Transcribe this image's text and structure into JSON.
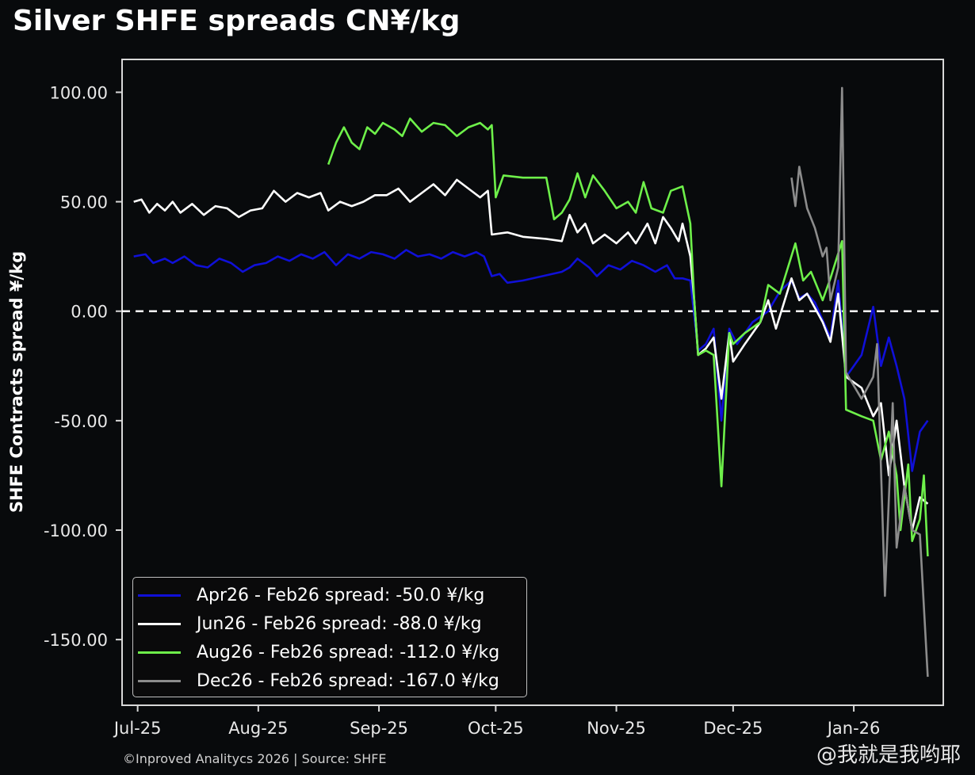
{
  "title": "Silver SHFE spreads CN¥/kg",
  "source": "©Inproved Analitycs 2026 | Source: SHFE",
  "watermark": "@我就是我哟耶",
  "chart_data": {
    "type": "line",
    "title": "Silver SHFE spreads CN¥/kg",
    "xlabel": "",
    "ylabel": "SHFE Contracts spread ¥/kg",
    "ylim": [
      -180,
      115
    ],
    "xlim": [
      "2025-06-27",
      "2026-01-24"
    ],
    "yticks": [
      100,
      50,
      0,
      -50,
      -100,
      -150
    ],
    "ytick_labels": [
      "100.00",
      "50.00",
      "0.00",
      "-50.00",
      "-100.00",
      "-150.00"
    ],
    "xticks": [
      "2025-07-01",
      "2025-08-01",
      "2025-09-01",
      "2025-10-01",
      "2025-11-01",
      "2025-12-01",
      "2026-01-01"
    ],
    "xtick_labels": [
      "Jul-25",
      "Aug-25",
      "Sep-25",
      "Oct-25",
      "Nov-25",
      "Dec-25",
      "Jan-26"
    ],
    "reference_line": {
      "y": 0,
      "style": "dashed",
      "color": "#ffffff"
    },
    "grid": false,
    "legend_position": "bottom-left",
    "series": [
      {
        "name": "Apr26 - Feb26 spread: -50.0 ¥/kg",
        "color": "#1010d8",
        "points": [
          [
            "2025-06-30",
            25
          ],
          [
            "2025-07-03",
            26
          ],
          [
            "2025-07-05",
            22
          ],
          [
            "2025-07-08",
            24
          ],
          [
            "2025-07-10",
            22
          ],
          [
            "2025-07-13",
            25
          ],
          [
            "2025-07-16",
            21
          ],
          [
            "2025-07-19",
            20
          ],
          [
            "2025-07-22",
            24
          ],
          [
            "2025-07-25",
            22
          ],
          [
            "2025-07-28",
            18
          ],
          [
            "2025-07-31",
            21
          ],
          [
            "2025-08-03",
            22
          ],
          [
            "2025-08-06",
            25
          ],
          [
            "2025-08-09",
            23
          ],
          [
            "2025-08-12",
            26
          ],
          [
            "2025-08-15",
            24
          ],
          [
            "2025-08-18",
            27
          ],
          [
            "2025-08-21",
            21
          ],
          [
            "2025-08-24",
            26
          ],
          [
            "2025-08-27",
            24
          ],
          [
            "2025-08-30",
            27
          ],
          [
            "2025-09-02",
            26
          ],
          [
            "2025-09-05",
            24
          ],
          [
            "2025-09-08",
            28
          ],
          [
            "2025-09-11",
            25
          ],
          [
            "2025-09-14",
            26
          ],
          [
            "2025-09-17",
            24
          ],
          [
            "2025-09-20",
            27
          ],
          [
            "2025-09-23",
            25
          ],
          [
            "2025-09-26",
            27
          ],
          [
            "2025-09-28",
            25
          ],
          [
            "2025-09-30",
            16
          ],
          [
            "2025-10-02",
            17
          ],
          [
            "2025-10-04",
            13
          ],
          [
            "2025-10-08",
            14
          ],
          [
            "2025-10-13",
            16
          ],
          [
            "2025-10-18",
            18
          ],
          [
            "2025-10-20",
            20
          ],
          [
            "2025-10-22",
            24
          ],
          [
            "2025-10-25",
            20
          ],
          [
            "2025-10-27",
            16
          ],
          [
            "2025-10-30",
            21
          ],
          [
            "2025-11-02",
            19
          ],
          [
            "2025-11-05",
            23
          ],
          [
            "2025-11-08",
            21
          ],
          [
            "2025-11-11",
            18
          ],
          [
            "2025-11-14",
            21
          ],
          [
            "2025-11-16",
            15
          ],
          [
            "2025-11-18",
            15
          ],
          [
            "2025-11-20",
            14
          ],
          [
            "2025-11-22",
            -18
          ],
          [
            "2025-11-24",
            -15
          ],
          [
            "2025-11-26",
            -8
          ],
          [
            "2025-11-28",
            -50
          ],
          [
            "2025-11-30",
            -8
          ],
          [
            "2025-12-02",
            -15
          ],
          [
            "2025-12-06",
            -5
          ],
          [
            "2025-12-10",
            0
          ],
          [
            "2025-12-13",
            9
          ],
          [
            "2025-12-16",
            14
          ],
          [
            "2025-12-18",
            6
          ],
          [
            "2025-12-20",
            8
          ],
          [
            "2025-12-22",
            4
          ],
          [
            "2025-12-24",
            -4
          ],
          [
            "2025-12-26",
            -12
          ],
          [
            "2025-12-28",
            14
          ],
          [
            "2025-12-30",
            -30
          ],
          [
            "2026-01-03",
            -20
          ],
          [
            "2026-01-06",
            2
          ],
          [
            "2026-01-08",
            -25
          ],
          [
            "2026-01-10",
            -12
          ],
          [
            "2026-01-12",
            -25
          ],
          [
            "2026-01-14",
            -40
          ],
          [
            "2026-01-16",
            -73
          ],
          [
            "2026-01-18",
            -55
          ],
          [
            "2026-01-20",
            -50
          ]
        ]
      },
      {
        "name": "Jun26 - Feb26 spread: -88.0 ¥/kg",
        "color": "#ffffff",
        "points": [
          [
            "2025-06-30",
            50
          ],
          [
            "2025-07-02",
            51
          ],
          [
            "2025-07-04",
            45
          ],
          [
            "2025-07-06",
            49
          ],
          [
            "2025-07-08",
            46
          ],
          [
            "2025-07-10",
            50
          ],
          [
            "2025-07-12",
            45
          ],
          [
            "2025-07-15",
            49
          ],
          [
            "2025-07-18",
            44
          ],
          [
            "2025-07-21",
            48
          ],
          [
            "2025-07-24",
            47
          ],
          [
            "2025-07-27",
            43
          ],
          [
            "2025-07-30",
            46
          ],
          [
            "2025-08-02",
            47
          ],
          [
            "2025-08-05",
            55
          ],
          [
            "2025-08-08",
            50
          ],
          [
            "2025-08-11",
            54
          ],
          [
            "2025-08-14",
            52
          ],
          [
            "2025-08-17",
            54
          ],
          [
            "2025-08-19",
            46
          ],
          [
            "2025-08-22",
            50
          ],
          [
            "2025-08-25",
            48
          ],
          [
            "2025-08-28",
            50
          ],
          [
            "2025-08-31",
            53
          ],
          [
            "2025-09-03",
            53
          ],
          [
            "2025-09-06",
            56
          ],
          [
            "2025-09-09",
            50
          ],
          [
            "2025-09-12",
            54
          ],
          [
            "2025-09-15",
            58
          ],
          [
            "2025-09-18",
            53
          ],
          [
            "2025-09-21",
            60
          ],
          [
            "2025-09-24",
            56
          ],
          [
            "2025-09-27",
            52
          ],
          [
            "2025-09-29",
            55
          ],
          [
            "2025-09-30",
            35
          ],
          [
            "2025-10-04",
            36
          ],
          [
            "2025-10-08",
            34
          ],
          [
            "2025-10-14",
            33
          ],
          [
            "2025-10-18",
            32
          ],
          [
            "2025-10-20",
            44
          ],
          [
            "2025-10-22",
            36
          ],
          [
            "2025-10-24",
            40
          ],
          [
            "2025-10-26",
            31
          ],
          [
            "2025-10-29",
            35
          ],
          [
            "2025-11-01",
            31
          ],
          [
            "2025-11-04",
            36
          ],
          [
            "2025-11-06",
            31
          ],
          [
            "2025-11-09",
            40
          ],
          [
            "2025-11-11",
            31
          ],
          [
            "2025-11-13",
            43
          ],
          [
            "2025-11-15",
            38
          ],
          [
            "2025-11-17",
            32
          ],
          [
            "2025-11-18",
            40
          ],
          [
            "2025-11-20",
            25
          ],
          [
            "2025-11-21",
            5
          ],
          [
            "2025-11-22",
            -20
          ],
          [
            "2025-11-24",
            -17
          ],
          [
            "2025-11-26",
            -12
          ],
          [
            "2025-11-28",
            -40
          ],
          [
            "2025-11-30",
            -10
          ],
          [
            "2025-12-01",
            -23
          ],
          [
            "2025-12-04",
            -15
          ],
          [
            "2025-12-08",
            -5
          ],
          [
            "2025-12-10",
            5
          ],
          [
            "2025-12-12",
            -8
          ],
          [
            "2025-12-16",
            15
          ],
          [
            "2025-12-18",
            5
          ],
          [
            "2025-12-20",
            8
          ],
          [
            "2025-12-24",
            -5
          ],
          [
            "2025-12-26",
            -14
          ],
          [
            "2025-12-28",
            8
          ],
          [
            "2025-12-30",
            -30
          ],
          [
            "2026-01-03",
            -35
          ],
          [
            "2026-01-06",
            -48
          ],
          [
            "2026-01-08",
            -42
          ],
          [
            "2026-01-10",
            -75
          ],
          [
            "2026-01-12",
            -50
          ],
          [
            "2026-01-14",
            -80
          ],
          [
            "2026-01-16",
            -100
          ],
          [
            "2026-01-18",
            -85
          ],
          [
            "2026-01-20",
            -88
          ]
        ]
      },
      {
        "name": "Aug26 - Feb26 spread: -112.0 ¥/kg",
        "color": "#6ef04a",
        "points": [
          [
            "2025-08-19",
            67
          ],
          [
            "2025-08-21",
            77
          ],
          [
            "2025-08-23",
            84
          ],
          [
            "2025-08-25",
            77
          ],
          [
            "2025-08-27",
            74
          ],
          [
            "2025-08-29",
            84
          ],
          [
            "2025-08-31",
            81
          ],
          [
            "2025-09-02",
            86
          ],
          [
            "2025-09-05",
            83
          ],
          [
            "2025-09-07",
            80
          ],
          [
            "2025-09-09",
            88
          ],
          [
            "2025-09-12",
            82
          ],
          [
            "2025-09-15",
            86
          ],
          [
            "2025-09-18",
            85
          ],
          [
            "2025-09-21",
            80
          ],
          [
            "2025-09-24",
            84
          ],
          [
            "2025-09-27",
            86
          ],
          [
            "2025-09-29",
            83
          ],
          [
            "2025-09-30",
            85
          ],
          [
            "2025-10-01",
            52
          ],
          [
            "2025-10-03",
            62
          ],
          [
            "2025-10-08",
            61
          ],
          [
            "2025-10-14",
            61
          ],
          [
            "2025-10-16",
            42
          ],
          [
            "2025-10-18",
            45
          ],
          [
            "2025-10-20",
            51
          ],
          [
            "2025-10-22",
            63
          ],
          [
            "2025-10-24",
            52
          ],
          [
            "2025-10-26",
            62
          ],
          [
            "2025-10-29",
            55
          ],
          [
            "2025-11-01",
            47
          ],
          [
            "2025-11-04",
            50
          ],
          [
            "2025-11-06",
            45
          ],
          [
            "2025-11-08",
            59
          ],
          [
            "2025-11-10",
            47
          ],
          [
            "2025-11-13",
            45
          ],
          [
            "2025-11-15",
            55
          ],
          [
            "2025-11-18",
            57
          ],
          [
            "2025-11-20",
            40
          ],
          [
            "2025-11-21",
            5
          ],
          [
            "2025-11-22",
            -20
          ],
          [
            "2025-11-24",
            -18
          ],
          [
            "2025-11-26",
            -20
          ],
          [
            "2025-11-28",
            -80
          ],
          [
            "2025-11-30",
            -10
          ],
          [
            "2025-12-01",
            -15
          ],
          [
            "2025-12-04",
            -10
          ],
          [
            "2025-12-08",
            -5
          ],
          [
            "2025-12-10",
            12
          ],
          [
            "2025-12-13",
            8
          ],
          [
            "2025-12-17",
            31
          ],
          [
            "2025-12-19",
            14
          ],
          [
            "2025-12-21",
            18
          ],
          [
            "2025-12-24",
            5
          ],
          [
            "2025-12-26",
            15
          ],
          [
            "2025-12-29",
            32
          ],
          [
            "2025-12-30",
            -45
          ],
          [
            "2026-01-03",
            -48
          ],
          [
            "2026-01-06",
            -50
          ],
          [
            "2026-01-08",
            -68
          ],
          [
            "2026-01-10",
            -55
          ],
          [
            "2026-01-12",
            -75
          ],
          [
            "2026-01-13",
            -100
          ],
          [
            "2026-01-15",
            -70
          ],
          [
            "2026-01-16",
            -105
          ],
          [
            "2026-01-18",
            -95
          ],
          [
            "2026-01-19",
            -75
          ],
          [
            "2026-01-20",
            -112
          ]
        ]
      },
      {
        "name": "Dec26 - Feb26 spread: -167.0 ¥/kg",
        "color": "#8c8c8c",
        "points": [
          [
            "2025-12-16",
            61
          ],
          [
            "2025-12-17",
            48
          ],
          [
            "2025-12-18",
            66
          ],
          [
            "2025-12-20",
            47
          ],
          [
            "2025-12-22",
            38
          ],
          [
            "2025-12-24",
            25
          ],
          [
            "2025-12-25",
            29
          ],
          [
            "2025-12-26",
            5
          ],
          [
            "2025-12-28",
            20
          ],
          [
            "2025-12-29",
            102
          ],
          [
            "2025-12-30",
            -28
          ],
          [
            "2026-01-03",
            -40
          ],
          [
            "2026-01-06",
            -30
          ],
          [
            "2026-01-07",
            -15
          ],
          [
            "2026-01-09",
            -130
          ],
          [
            "2026-01-11",
            -42
          ],
          [
            "2026-01-12",
            -108
          ],
          [
            "2026-01-14",
            -80
          ],
          [
            "2026-01-16",
            -100
          ],
          [
            "2026-01-18",
            -102
          ],
          [
            "2026-01-20",
            -167
          ]
        ]
      }
    ]
  }
}
